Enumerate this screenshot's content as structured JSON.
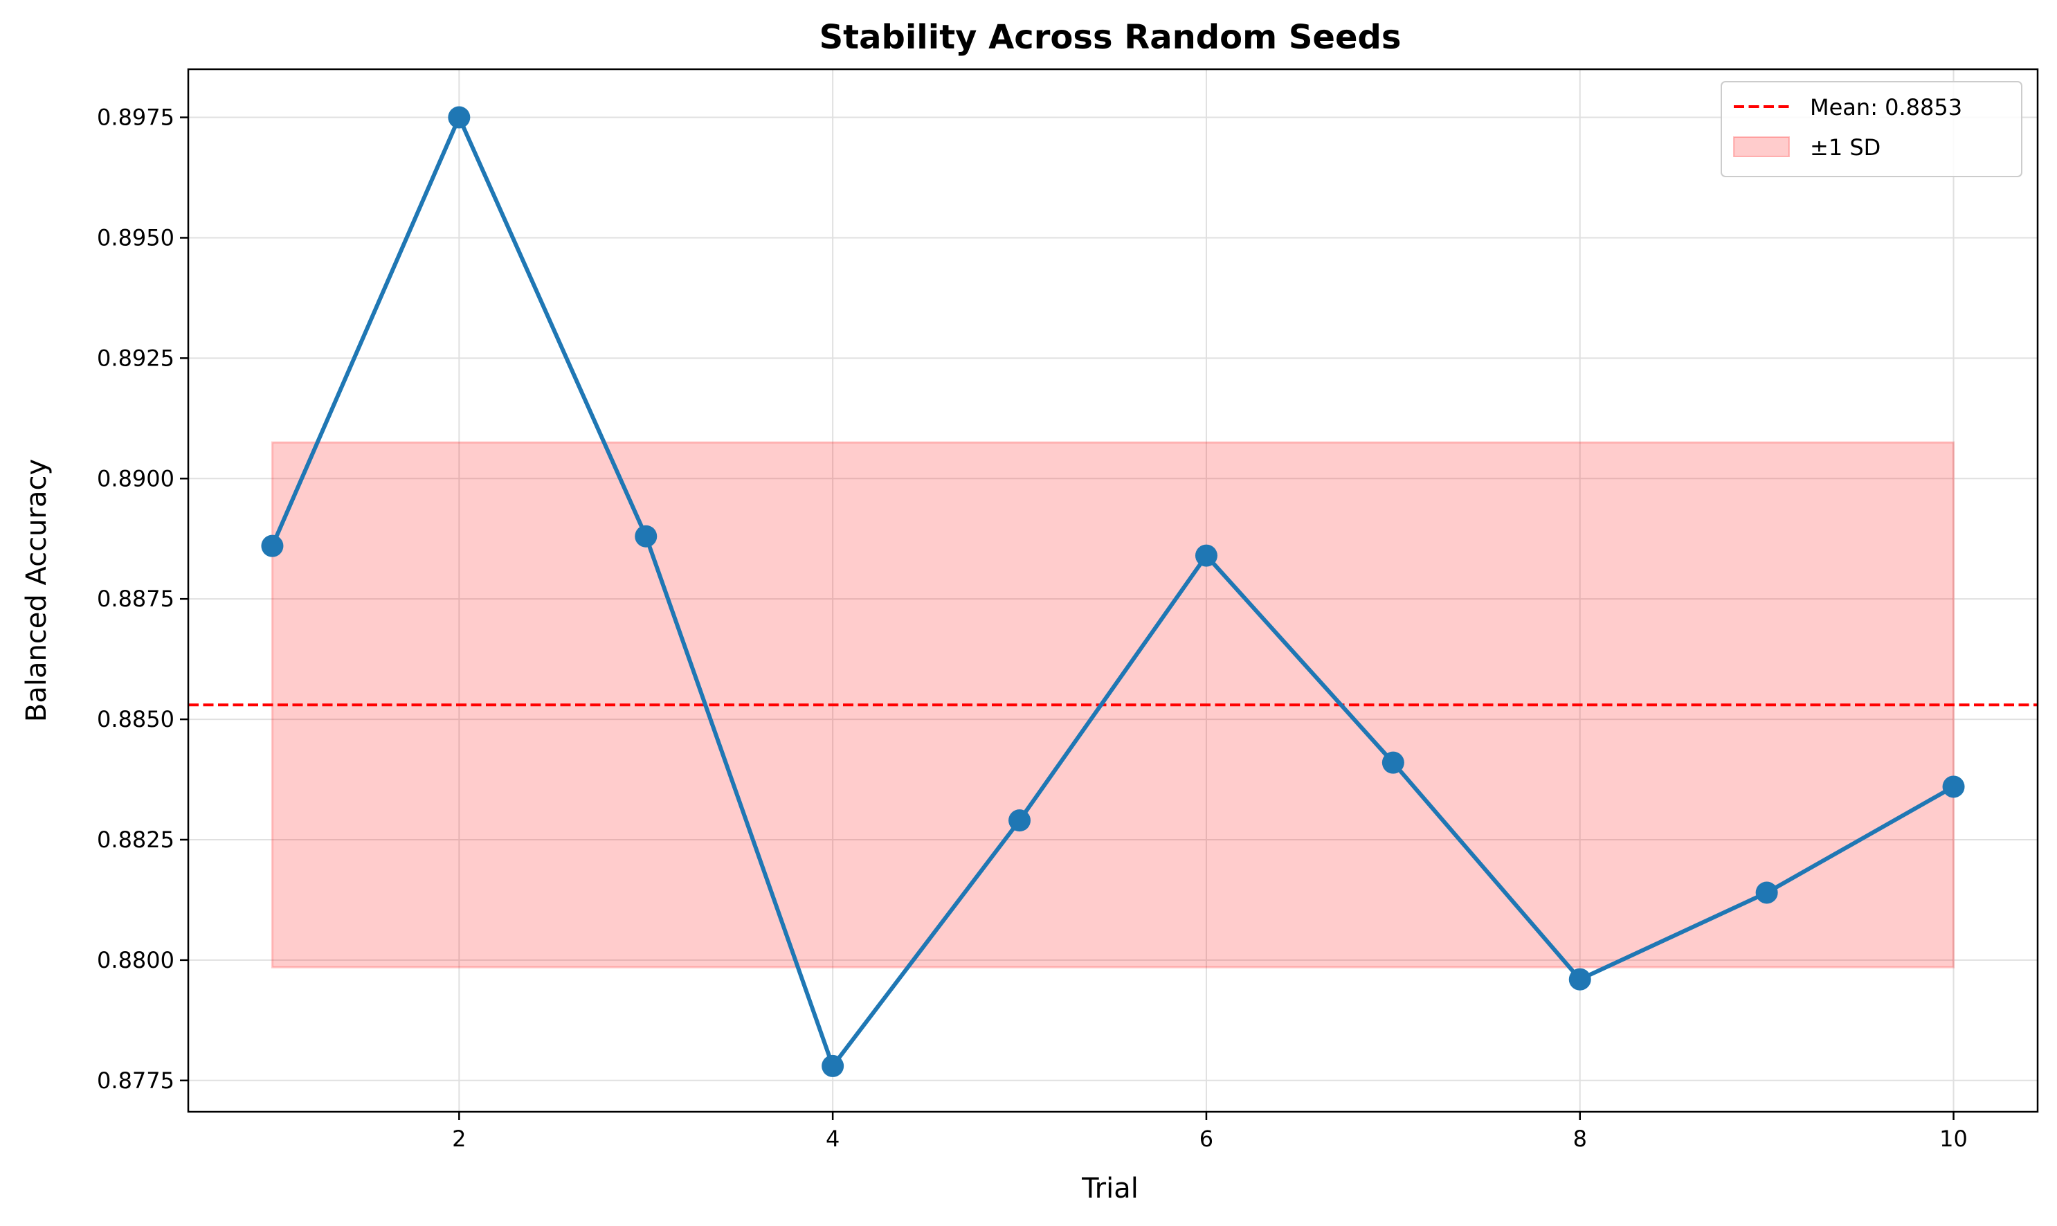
{
  "chart_data": {
    "type": "line",
    "title": "Stability Across Random Seeds",
    "xlabel": "Trial",
    "ylabel": "Balanced Accuracy",
    "xlim": [
      0.55,
      10.45
    ],
    "ylim": [
      0.87685,
      0.8985
    ],
    "x_ticks": [
      2,
      4,
      6,
      8,
      10
    ],
    "y_ticks": [
      0.8775,
      0.88,
      0.8825,
      0.885,
      0.8875,
      0.89,
      0.8925,
      0.895,
      0.8975
    ],
    "y_tick_labels": [
      "0.8775",
      "0.8800",
      "0.8825",
      "0.8850",
      "0.8875",
      "0.8900",
      "0.8925",
      "0.8950",
      "0.8975"
    ],
    "x_tick_labels": [
      "2",
      "4",
      "6",
      "8",
      "10"
    ],
    "grid": true,
    "legend_position": "top-right",
    "series": [
      {
        "name": "",
        "color": "#1f77b4",
        "x": [
          1,
          2,
          3,
          4,
          5,
          6,
          7,
          8,
          9,
          10
        ],
        "y": [
          0.8886,
          0.8975,
          0.8888,
          0.8778,
          0.8829,
          0.8884,
          0.8841,
          0.8796,
          0.8814,
          0.8836
        ]
      }
    ],
    "mean_line": {
      "label": "Mean: 0.8853",
      "value": 0.8853,
      "color": "#ff0000"
    },
    "sd_band": {
      "label": "±1 SD",
      "lower": 0.87985,
      "upper": 0.89075,
      "x_start": 1,
      "x_end": 10,
      "color": "#ff0000"
    }
  }
}
